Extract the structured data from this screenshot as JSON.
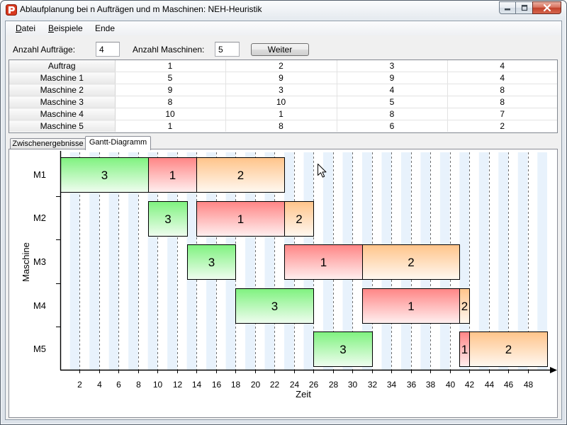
{
  "window": {
    "title": "Ablaufplanung bei n Aufträgen und m Maschinen: NEH-Heuristik"
  },
  "menu": {
    "items": [
      {
        "label": "Datei"
      },
      {
        "label": "Beispiele"
      },
      {
        "label": "Ende"
      }
    ]
  },
  "controls": {
    "jobs_label": "Anzahl Aufträge:",
    "jobs_value": "4",
    "machines_label": "Anzahl Maschinen:",
    "machines_value": "5",
    "next_button": "Weiter"
  },
  "table": {
    "header": [
      "Auftrag",
      "1",
      "2",
      "3",
      "4"
    ],
    "rows": [
      [
        "Maschine 1",
        "5",
        "9",
        "9",
        "4"
      ],
      [
        "Maschine 2",
        "9",
        "3",
        "4",
        "8"
      ],
      [
        "Maschine 3",
        "8",
        "10",
        "5",
        "8"
      ],
      [
        "Maschine 4",
        "10",
        "1",
        "8",
        "7"
      ],
      [
        "Maschine 5",
        "1",
        "8",
        "6",
        "2"
      ]
    ]
  },
  "tabs": [
    {
      "label": "Zwischenergebnisse",
      "active": false
    },
    {
      "label": "Gantt-Diagramm",
      "active": true
    }
  ],
  "icons": {
    "app": "app-icon",
    "minimize": "minimize-icon",
    "maximize": "maximize-icon",
    "close": "close-icon",
    "cursor": "mouse-cursor-icon"
  },
  "chart_data": {
    "type": "bar",
    "orientation": "horizontal",
    "xlabel": "Zeit",
    "ylabel": "Maschine",
    "categories": [
      "M1",
      "M2",
      "M3",
      "M4",
      "M5"
    ],
    "xlim": [
      0,
      50
    ],
    "xticks": [
      2,
      4,
      6,
      8,
      10,
      12,
      14,
      16,
      18,
      20,
      22,
      24,
      26,
      28,
      30,
      32,
      34,
      36,
      38,
      40,
      42,
      44,
      46,
      48
    ],
    "grid": true,
    "series": [
      {
        "name": "3",
        "color": "#7ff27f",
        "segments": [
          [
            0,
            9
          ],
          [
            9,
            13
          ],
          [
            13,
            18
          ],
          [
            18,
            26
          ],
          [
            26,
            32
          ]
        ]
      },
      {
        "name": "1",
        "color": "#ff8585",
        "segments": [
          [
            9,
            14
          ],
          [
            14,
            23
          ],
          [
            23,
            31
          ],
          [
            31,
            41
          ],
          [
            41,
            42
          ]
        ]
      },
      {
        "name": "2",
        "color": "#ffc48a",
        "segments": [
          [
            14,
            23
          ],
          [
            23,
            26
          ],
          [
            31,
            41
          ],
          [
            41,
            42
          ],
          [
            42,
            50
          ]
        ]
      }
    ]
  }
}
